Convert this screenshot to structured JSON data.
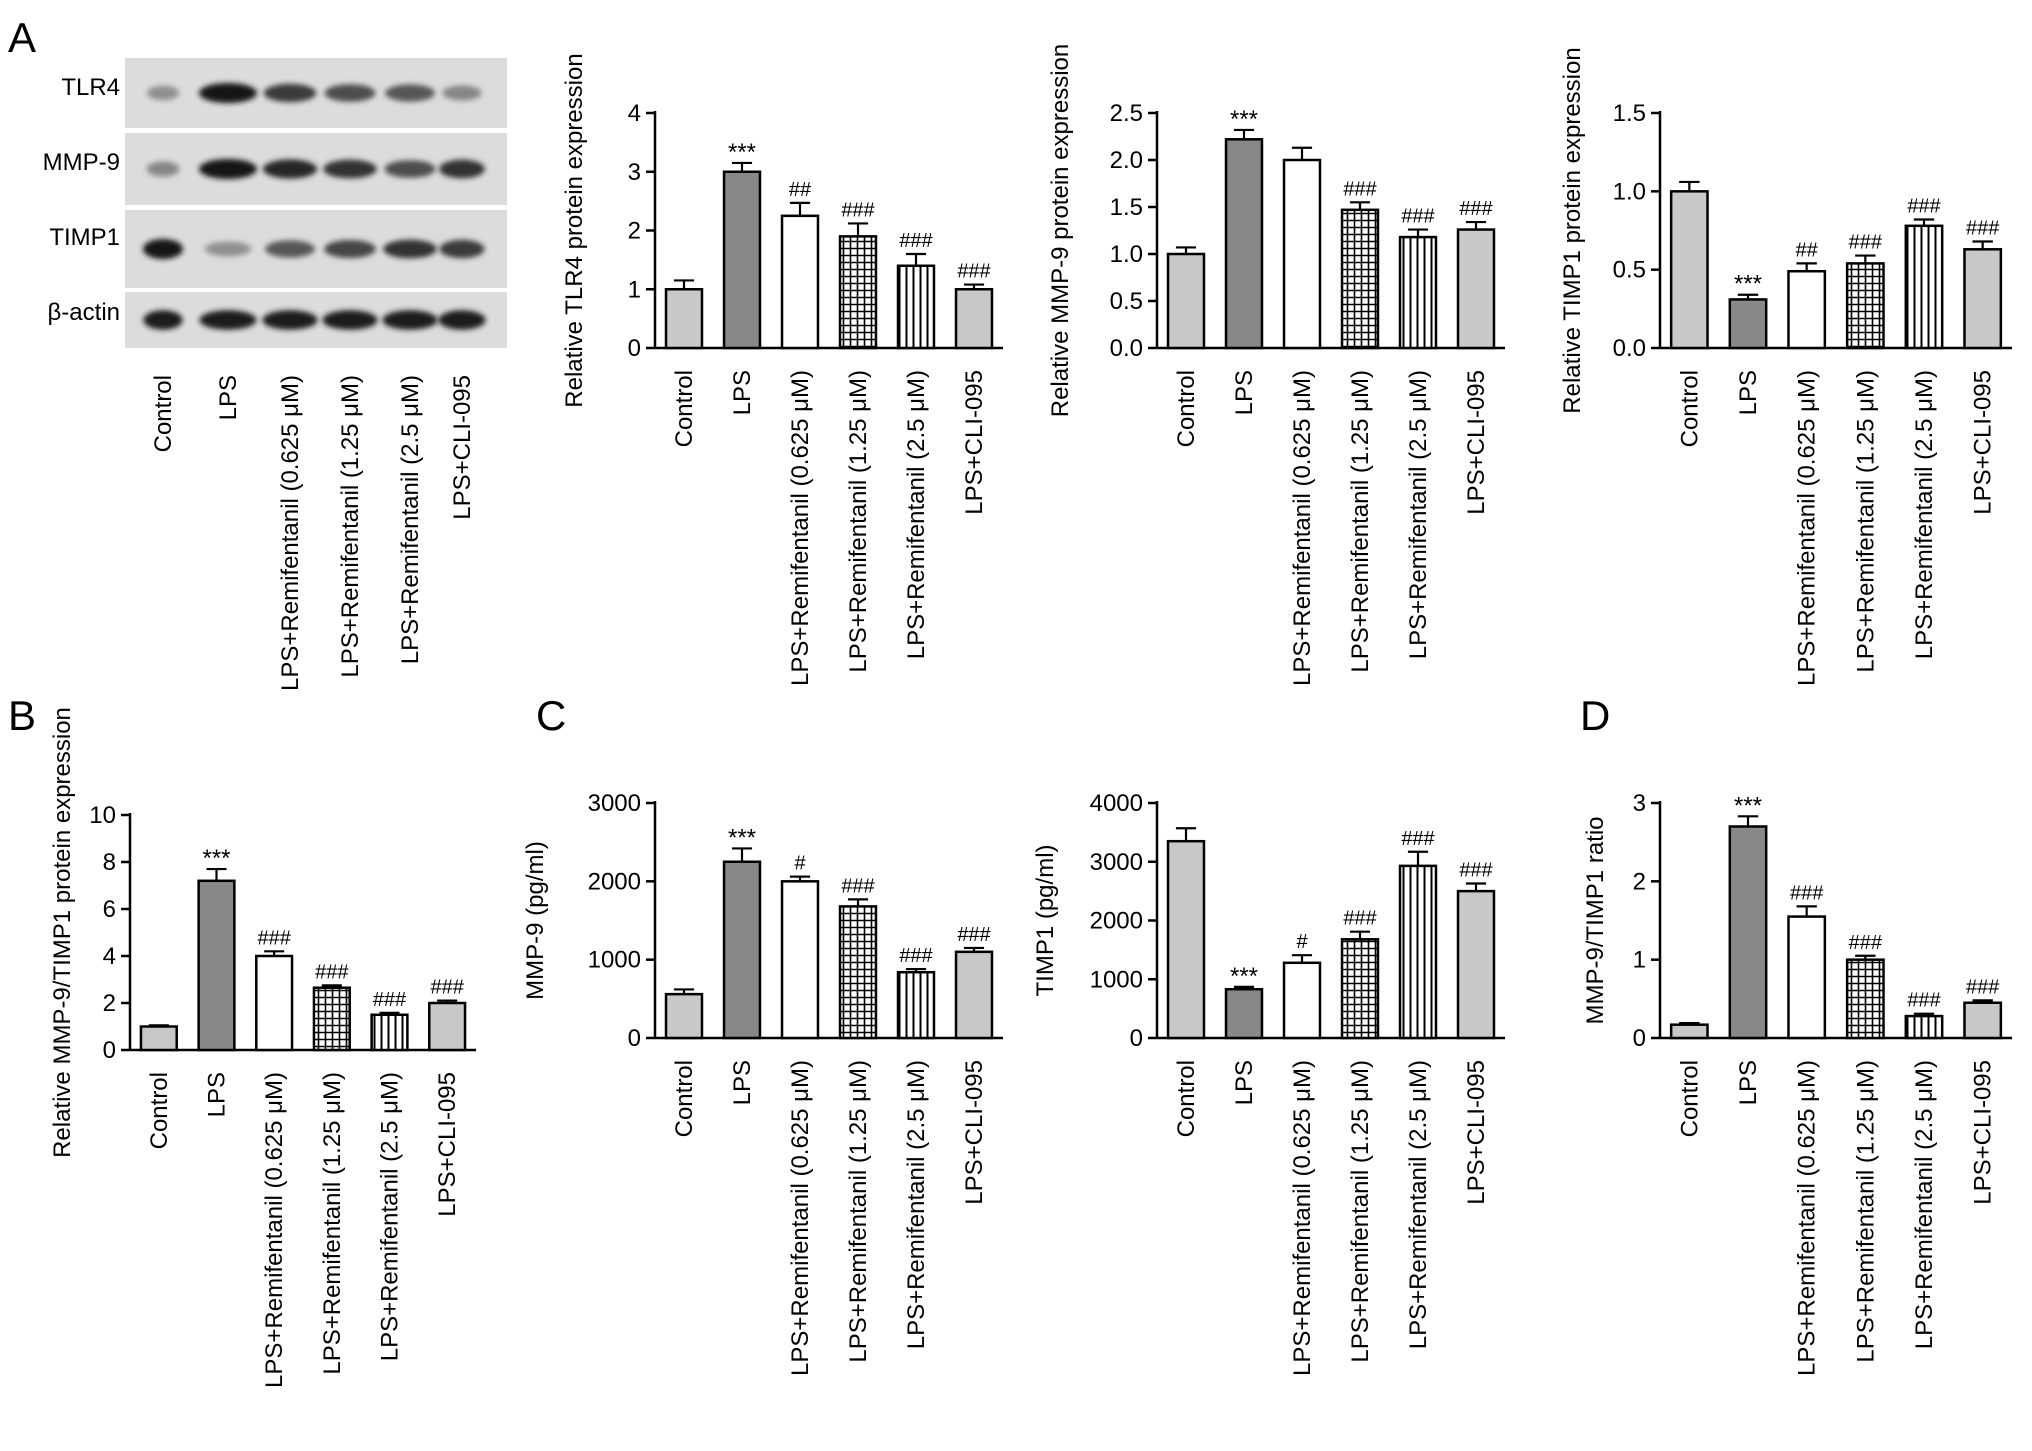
{
  "panel_letters": {
    "A": "A",
    "B": "B",
    "C": "C",
    "D": "D"
  },
  "groups": [
    "Control",
    "LPS",
    "LPS+Remifentanil (0.625 μM)",
    "LPS+Remifentanil (1.25 μM)",
    "LPS+Remifentanil (2.5 μM)",
    "LPS+CLI-095"
  ],
  "blot": {
    "rows": [
      "TLR4",
      "MMP-9",
      "TIMP1",
      "β-actin"
    ],
    "intensity": [
      [
        0.35,
        1.0,
        0.8,
        0.7,
        0.65,
        0.4
      ],
      [
        0.4,
        1.0,
        0.9,
        0.85,
        0.7,
        0.85
      ],
      [
        1.0,
        0.35,
        0.65,
        0.75,
        0.85,
        0.8
      ],
      [
        0.95,
        0.95,
        0.95,
        0.95,
        0.95,
        0.95
      ]
    ]
  },
  "colors": {
    "control": "#c8c8c8",
    "lps": "#888888",
    "rem_low": "#ffffff",
    "rem_mid": "#ffffff",
    "rem_high": "#ffffff",
    "cli": "#c8c8c8",
    "ink": "#000000"
  },
  "chart_data": [
    {
      "id": "tlr4",
      "type": "bar",
      "ylabel": "Relative TLR4 protein expression",
      "ylim": [
        0,
        4
      ],
      "yticks": [
        "0",
        "1",
        "2",
        "3",
        "4"
      ],
      "values": [
        1.0,
        3.0,
        2.25,
        1.9,
        1.4,
        1.0
      ],
      "errors": [
        0.15,
        0.15,
        0.22,
        0.22,
        0.2,
        0.08
      ],
      "annotations": [
        "",
        "***",
        "##",
        "###",
        "###",
        "###"
      ]
    },
    {
      "id": "mmp9",
      "type": "bar",
      "ylabel": "Relative MMP-9 protein expression",
      "ylim": [
        0,
        2.5
      ],
      "yticks": [
        "0.0",
        "0.5",
        "1.0",
        "1.5",
        "2.0",
        "2.5"
      ],
      "values": [
        1.0,
        2.22,
        2.0,
        1.47,
        1.18,
        1.26
      ],
      "errors": [
        0.07,
        0.1,
        0.13,
        0.08,
        0.08,
        0.08
      ],
      "annotations": [
        "",
        "***",
        "",
        "###",
        "###",
        "###"
      ]
    },
    {
      "id": "timp1",
      "type": "bar",
      "ylabel": "Relative TIMP1 protein expression",
      "ylim": [
        0,
        1.5
      ],
      "yticks": [
        "0.0",
        "0.5",
        "1.0",
        "1.5"
      ],
      "values": [
        1.0,
        0.31,
        0.49,
        0.54,
        0.78,
        0.63
      ],
      "errors": [
        0.06,
        0.03,
        0.05,
        0.05,
        0.04,
        0.05
      ],
      "annotations": [
        "",
        "***",
        "##",
        "###",
        "###",
        "###"
      ]
    },
    {
      "id": "ratio-b",
      "type": "bar",
      "ylabel": "Relative MMP-9/TIMP1 protein expression",
      "ylim": [
        0,
        10
      ],
      "yticks": [
        "0",
        "2",
        "4",
        "6",
        "8",
        "10"
      ],
      "values": [
        1.0,
        7.2,
        4.0,
        2.65,
        1.5,
        2.0
      ],
      "errors": [
        0.05,
        0.5,
        0.2,
        0.1,
        0.08,
        0.1
      ],
      "annotations": [
        "",
        "***",
        "###",
        "###",
        "###",
        "###"
      ]
    },
    {
      "id": "mmp9-elisa",
      "type": "bar",
      "ylabel": "MMP-9 (pg/ml)",
      "ylim": [
        0,
        3000
      ],
      "yticks": [
        "0",
        "1000",
        "2000",
        "3000"
      ],
      "values": [
        560,
        2250,
        2000,
        1680,
        840,
        1100
      ],
      "errors": [
        60,
        170,
        60,
        90,
        40,
        50
      ],
      "annotations": [
        "",
        "***",
        "#",
        "###",
        "###",
        "###"
      ]
    },
    {
      "id": "timp1-elisa",
      "type": "bar",
      "ylabel": "TIMP1 (pg/ml)",
      "ylim": [
        0,
        4000
      ],
      "yticks": [
        "0",
        "1000",
        "2000",
        "3000",
        "4000"
      ],
      "values": [
        3350,
        830,
        1280,
        1680,
        2930,
        2500
      ],
      "errors": [
        220,
        40,
        130,
        130,
        240,
        130
      ],
      "annotations": [
        "",
        "***",
        "#",
        "###",
        "###",
        "###"
      ]
    },
    {
      "id": "ratio-d",
      "type": "bar",
      "ylabel": "MMP-9/TIMP1 ratio",
      "ylim": [
        0,
        3
      ],
      "yticks": [
        "0",
        "1",
        "2",
        "3"
      ],
      "values": [
        0.17,
        2.7,
        1.55,
        1.0,
        0.28,
        0.45
      ],
      "errors": [
        0.02,
        0.13,
        0.13,
        0.05,
        0.03,
        0.03
      ],
      "annotations": [
        "",
        "***",
        "###",
        "###",
        "###",
        "###"
      ]
    }
  ]
}
